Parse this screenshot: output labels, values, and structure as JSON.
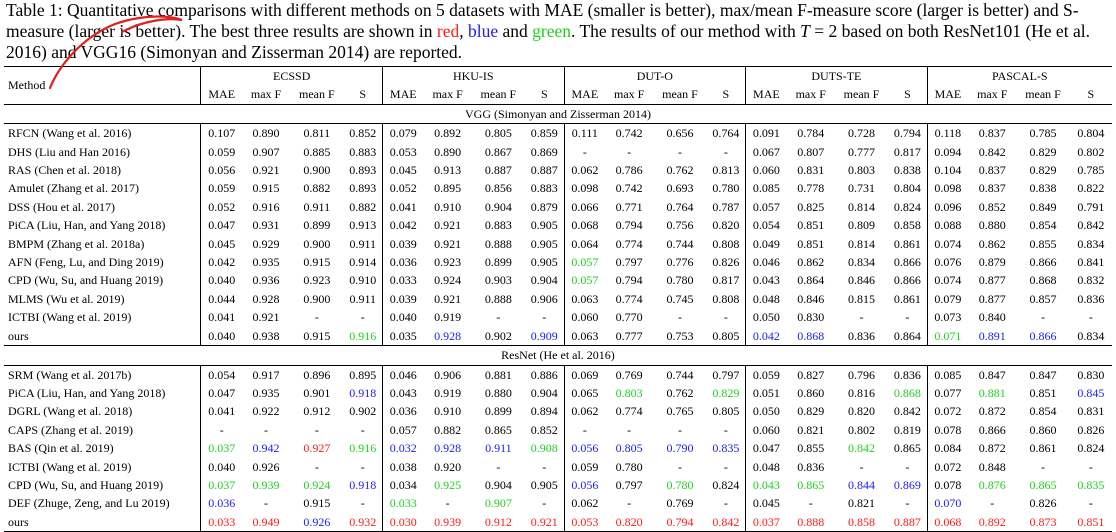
{
  "caption": {
    "p1": "Table 1: Quantitative comparisons with different methods on 5 datasets with MAE (smaller is better), max/mean F-measure score (larger is better) and S-measure (larger is better). The best three results are shown in ",
    "red": "red",
    "comma": ", ",
    "blue": "blue",
    "and": " and ",
    "green": "green",
    "p2": ". The results of our method with ",
    "T": "T",
    "eq": " = 2 based on both ResNet101 (He et al. 2016) and VGG16 (Simonyan and Zisserman 2014) are reported."
  },
  "colors": {
    "red": "#ff1a1a",
    "blue": "#1a1aff",
    "green": "#1fd01f"
  },
  "table": {
    "method_header": "Method",
    "datasets": [
      "ECSSD",
      "HKU-IS",
      "DUT-O",
      "DUTS-TE",
      "PASCAL-S"
    ],
    "metrics": [
      "MAE",
      "max F",
      "mean F",
      "S"
    ],
    "sections": [
      {
        "title": "VGG (Simonyan and Zisserman 2014)",
        "rows": [
          {
            "method": "RFCN (Wang et al. 2016)",
            "values": [
              "0.107",
              "0.890",
              "0.811",
              "0.852",
              "0.079",
              "0.892",
              "0.805",
              "0.859",
              "0.111",
              "0.742",
              "0.656",
              "0.764",
              "0.091",
              "0.784",
              "0.728",
              "0.794",
              "0.118",
              "0.837",
              "0.785",
              "0.804"
            ],
            "colors": {}
          },
          {
            "method": "DHS (Liu and Han 2016)",
            "values": [
              "0.059",
              "0.907",
              "0.885",
              "0.883",
              "0.053",
              "0.890",
              "0.867",
              "0.869",
              "-",
              "-",
              "-",
              "-",
              "0.067",
              "0.807",
              "0.777",
              "0.817",
              "0.094",
              "0.842",
              "0.829",
              "0.802"
            ],
            "colors": {}
          },
          {
            "method": "RAS (Chen et al. 2018)",
            "values": [
              "0.056",
              "0.921",
              "0.900",
              "0.893",
              "0.045",
              "0.913",
              "0.887",
              "0.887",
              "0.062",
              "0.786",
              "0.762",
              "0.813",
              "0.060",
              "0.831",
              "0.803",
              "0.838",
              "0.104",
              "0.837",
              "0.829",
              "0.785"
            ],
            "colors": {}
          },
          {
            "method": "Amulet (Zhang et al. 2017)",
            "values": [
              "0.059",
              "0.915",
              "0.882",
              "0.893",
              "0.052",
              "0.895",
              "0.856",
              "0.883",
              "0.098",
              "0.742",
              "0.693",
              "0.780",
              "0.085",
              "0.778",
              "0.731",
              "0.804",
              "0.098",
              "0.837",
              "0.838",
              "0.822"
            ],
            "colors": {}
          },
          {
            "method": "DSS (Hou et al. 2017)",
            "values": [
              "0.052",
              "0.916",
              "0.911",
              "0.882",
              "0.041",
              "0.910",
              "0.904",
              "0.879",
              "0.066",
              "0.771",
              "0.764",
              "0.787",
              "0.057",
              "0.825",
              "0.814",
              "0.824",
              "0.096",
              "0.852",
              "0.849",
              "0.791"
            ],
            "colors": {}
          },
          {
            "method": "PiCA (Liu, Han, and Yang 2018)",
            "values": [
              "0.047",
              "0.931",
              "0.899",
              "0.913",
              "0.042",
              "0.921",
              "0.883",
              "0.905",
              "0.068",
              "0.794",
              "0.756",
              "0.820",
              "0.054",
              "0.851",
              "0.809",
              "0.858",
              "0.088",
              "0.880",
              "0.854",
              "0.842"
            ],
            "colors": {}
          },
          {
            "method": "BMPM (Zhang et al. 2018a)",
            "values": [
              "0.045",
              "0.929",
              "0.900",
              "0.911",
              "0.039",
              "0.921",
              "0.888",
              "0.905",
              "0.064",
              "0.774",
              "0.744",
              "0.808",
              "0.049",
              "0.851",
              "0.814",
              "0.861",
              "0.074",
              "0.862",
              "0.855",
              "0.834"
            ],
            "colors": {}
          },
          {
            "method": "AFN (Feng, Lu, and Ding 2019)",
            "values": [
              "0.042",
              "0.935",
              "0.915",
              "0.914",
              "0.036",
              "0.923",
              "0.899",
              "0.905",
              "0.057",
              "0.797",
              "0.776",
              "0.826",
              "0.046",
              "0.862",
              "0.834",
              "0.866",
              "0.076",
              "0.879",
              "0.866",
              "0.841"
            ],
            "colors": {
              "8": "g"
            }
          },
          {
            "method": "CPD (Wu, Su, and Huang 2019)",
            "values": [
              "0.040",
              "0.936",
              "0.923",
              "0.910",
              "0.033",
              "0.924",
              "0.903",
              "0.904",
              "0.057",
              "0.794",
              "0.780",
              "0.817",
              "0.043",
              "0.864",
              "0.846",
              "0.866",
              "0.074",
              "0.877",
              "0.868",
              "0.832"
            ],
            "colors": {
              "8": "g"
            }
          },
          {
            "method": "MLMS (Wu et al. 2019)",
            "values": [
              "0.044",
              "0.928",
              "0.900",
              "0.911",
              "0.039",
              "0.921",
              "0.888",
              "0.906",
              "0.063",
              "0.774",
              "0.745",
              "0.808",
              "0.048",
              "0.846",
              "0.815",
              "0.861",
              "0.079",
              "0.877",
              "0.857",
              "0.836"
            ],
            "colors": {}
          },
          {
            "method": "ICTBI (Wang et al. 2019)",
            "values": [
              "0.041",
              "0.921",
              "-",
              "-",
              "0.040",
              "0.919",
              "-",
              "-",
              "0.060",
              "0.770",
              "-",
              "-",
              "0.050",
              "0.830",
              "-",
              "-",
              "0.073",
              "0.840",
              "-",
              "-"
            ],
            "colors": {}
          },
          {
            "method": "ours",
            "values": [
              "0.040",
              "0.938",
              "0.915",
              "0.916",
              "0.035",
              "0.928",
              "0.902",
              "0.909",
              "0.063",
              "0.777",
              "0.753",
              "0.805",
              "0.042",
              "0.868",
              "0.836",
              "0.864",
              "0.071",
              "0.891",
              "0.866",
              "0.834"
            ],
            "colors": {
              "3": "g",
              "5": "b",
              "7": "b",
              "12": "b",
              "13": "b",
              "16": "g",
              "17": "b",
              "18": "b"
            }
          }
        ]
      },
      {
        "title": "ResNet (He et al. 2016)",
        "rows": [
          {
            "method": "SRM (Wang et al. 2017b)",
            "values": [
              "0.054",
              "0.917",
              "0.896",
              "0.895",
              "0.046",
              "0.906",
              "0.881",
              "0.886",
              "0.069",
              "0.769",
              "0.744",
              "0.797",
              "0.059",
              "0.827",
              "0.796",
              "0.836",
              "0.085",
              "0.847",
              "0.847",
              "0.830"
            ],
            "colors": {}
          },
          {
            "method": "PiCA (Liu, Han, and Yang 2018)",
            "values": [
              "0.047",
              "0.935",
              "0.901",
              "0.918",
              "0.043",
              "0.919",
              "0.880",
              "0.904",
              "0.065",
              "0.803",
              "0.762",
              "0.829",
              "0.051",
              "0.860",
              "0.816",
              "0.868",
              "0.077",
              "0.881",
              "0.851",
              "0.845"
            ],
            "colors": {
              "3": "b",
              "9": "g",
              "11": "g",
              "15": "g",
              "17": "g",
              "19": "b"
            }
          },
          {
            "method": "DGRL (Wang et al. 2018)",
            "values": [
              "0.041",
              "0.922",
              "0.912",
              "0.902",
              "0.036",
              "0.910",
              "0.899",
              "0.894",
              "0.062",
              "0.774",
              "0.765",
              "0.805",
              "0.050",
              "0.829",
              "0.820",
              "0.842",
              "0.072",
              "0.872",
              "0.854",
              "0.831"
            ],
            "colors": {}
          },
          {
            "method": "CAPS (Zhang et al. 2019)",
            "values": [
              "-",
              "-",
              "-",
              "-",
              "0.057",
              "0.882",
              "0.865",
              "0.852",
              "-",
              "-",
              "-",
              "-",
              "0.060",
              "0.821",
              "0.802",
              "0.819",
              "0.078",
              "0.866",
              "0.860",
              "0.826"
            ],
            "colors": {}
          },
          {
            "method": "BAS (Qin et al. 2019)",
            "values": [
              "0.037",
              "0.942",
              "0.927",
              "0.916",
              "0.032",
              "0.928",
              "0.911",
              "0.908",
              "0.056",
              "0.805",
              "0.790",
              "0.835",
              "0.047",
              "0.855",
              "0.842",
              "0.865",
              "0.084",
              "0.872",
              "0.861",
              "0.824"
            ],
            "colors": {
              "0": "g",
              "1": "b",
              "2": "r",
              "3": "g",
              "4": "b",
              "5": "b",
              "6": "b",
              "7": "g",
              "8": "b",
              "9": "b",
              "10": "b",
              "11": "b",
              "14": "g"
            }
          },
          {
            "method": "ICTBI (Wang et al. 2019)",
            "values": [
              "0.040",
              "0.926",
              "-",
              "-",
              "0.038",
              "0.920",
              "-",
              "-",
              "0.059",
              "0.780",
              "-",
              "-",
              "0.048",
              "0.836",
              "-",
              "-",
              "0.072",
              "0.848",
              "-",
              "-"
            ],
            "colors": {}
          },
          {
            "method": "CPD (Wu, Su, and Huang 2019)",
            "values": [
              "0.037",
              "0.939",
              "0.924",
              "0.918",
              "0.034",
              "0.925",
              "0.904",
              "0.905",
              "0.056",
              "0.797",
              "0.780",
              "0.824",
              "0.043",
              "0.865",
              "0.844",
              "0.869",
              "0.078",
              "0.876",
              "0.865",
              "0.835"
            ],
            "colors": {
              "0": "g",
              "1": "g",
              "2": "g",
              "3": "b",
              "5": "g",
              "8": "b",
              "10": "g",
              "12": "g",
              "13": "g",
              "14": "b",
              "15": "b",
              "17": "g",
              "18": "g",
              "19": "g"
            }
          },
          {
            "method": "DEF (Zhuge, Zeng, and Lu 2019)",
            "values": [
              "0.036",
              "-",
              "0.915",
              "-",
              "0.033",
              "-",
              "0.907",
              "-",
              "0.062",
              "-",
              "0.769",
              "-",
              "0.045",
              "-",
              "0.821",
              "-",
              "0.070",
              "-",
              "0.826",
              "-"
            ],
            "colors": {
              "0": "b",
              "4": "g",
              "6": "g",
              "16": "b"
            }
          },
          {
            "method": "ours",
            "values": [
              "0.033",
              "0.949",
              "0.926",
              "0.932",
              "0.030",
              "0.939",
              "0.912",
              "0.921",
              "0.053",
              "0.820",
              "0.794",
              "0.842",
              "0.037",
              "0.888",
              "0.858",
              "0.887",
              "0.068",
              "0.892",
              "0.873",
              "0.851"
            ],
            "colors": {
              "0": "r",
              "1": "r",
              "2": "b",
              "3": "r",
              "4": "r",
              "5": "r",
              "6": "r",
              "7": "r",
              "8": "r",
              "9": "r",
              "10": "r",
              "11": "r",
              "12": "r",
              "13": "r",
              "14": "r",
              "15": "r",
              "16": "r",
              "17": "r",
              "18": "r",
              "19": "r"
            }
          }
        ]
      }
    ]
  }
}
